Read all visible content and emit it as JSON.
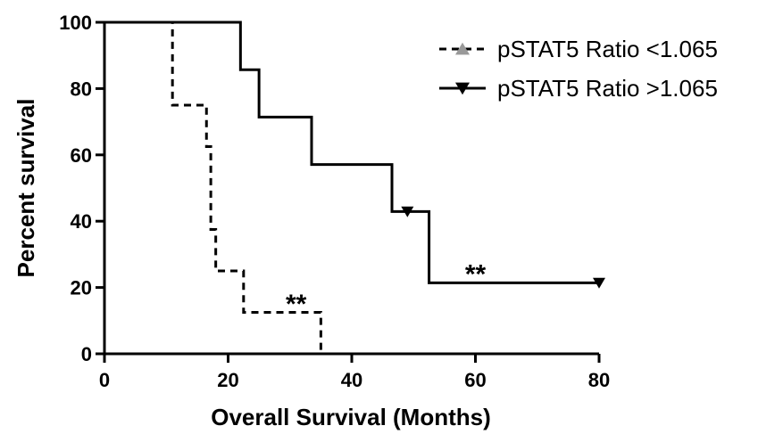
{
  "chart_data": {
    "type": "line",
    "subtype": "kaplan-meier-step",
    "xlabel": "Overall Survival (Months)",
    "ylabel": "Percent survival",
    "xlim": [
      0,
      80
    ],
    "ylim": [
      0,
      100
    ],
    "xticks": [
      0,
      20,
      40,
      60,
      80
    ],
    "yticks": [
      0,
      20,
      40,
      60,
      80,
      100
    ],
    "grid": false,
    "legend_position": "top-right",
    "series": [
      {
        "name": "pSTAT5 Ratio <1.065",
        "line_style": "dashed",
        "marker": "triangle-up",
        "marker_color": "#999999",
        "color": "#000000",
        "x": [
          0,
          11,
          16.5,
          17.2,
          18,
          22.5,
          35
        ],
        "y": [
          100,
          75,
          62.5,
          37.5,
          25,
          12.5,
          0
        ],
        "censored": []
      },
      {
        "name": "pSTAT5 Ratio >1.065",
        "line_style": "solid",
        "marker": "triangle-down",
        "marker_color": "#000000",
        "color": "#000000",
        "x": [
          0,
          22,
          25,
          33.5,
          46.5,
          52.5,
          80
        ],
        "y": [
          100,
          85.7,
          71.4,
          57.1,
          42.9,
          21.4,
          21.4
        ],
        "censored": [
          {
            "x": 49,
            "y": 42.9
          },
          {
            "x": 80,
            "y": 21.4
          }
        ]
      }
    ],
    "annotations": [
      {
        "text": "**",
        "x": 31,
        "y": 15
      },
      {
        "text": "**",
        "x": 60,
        "y": 24
      }
    ]
  }
}
